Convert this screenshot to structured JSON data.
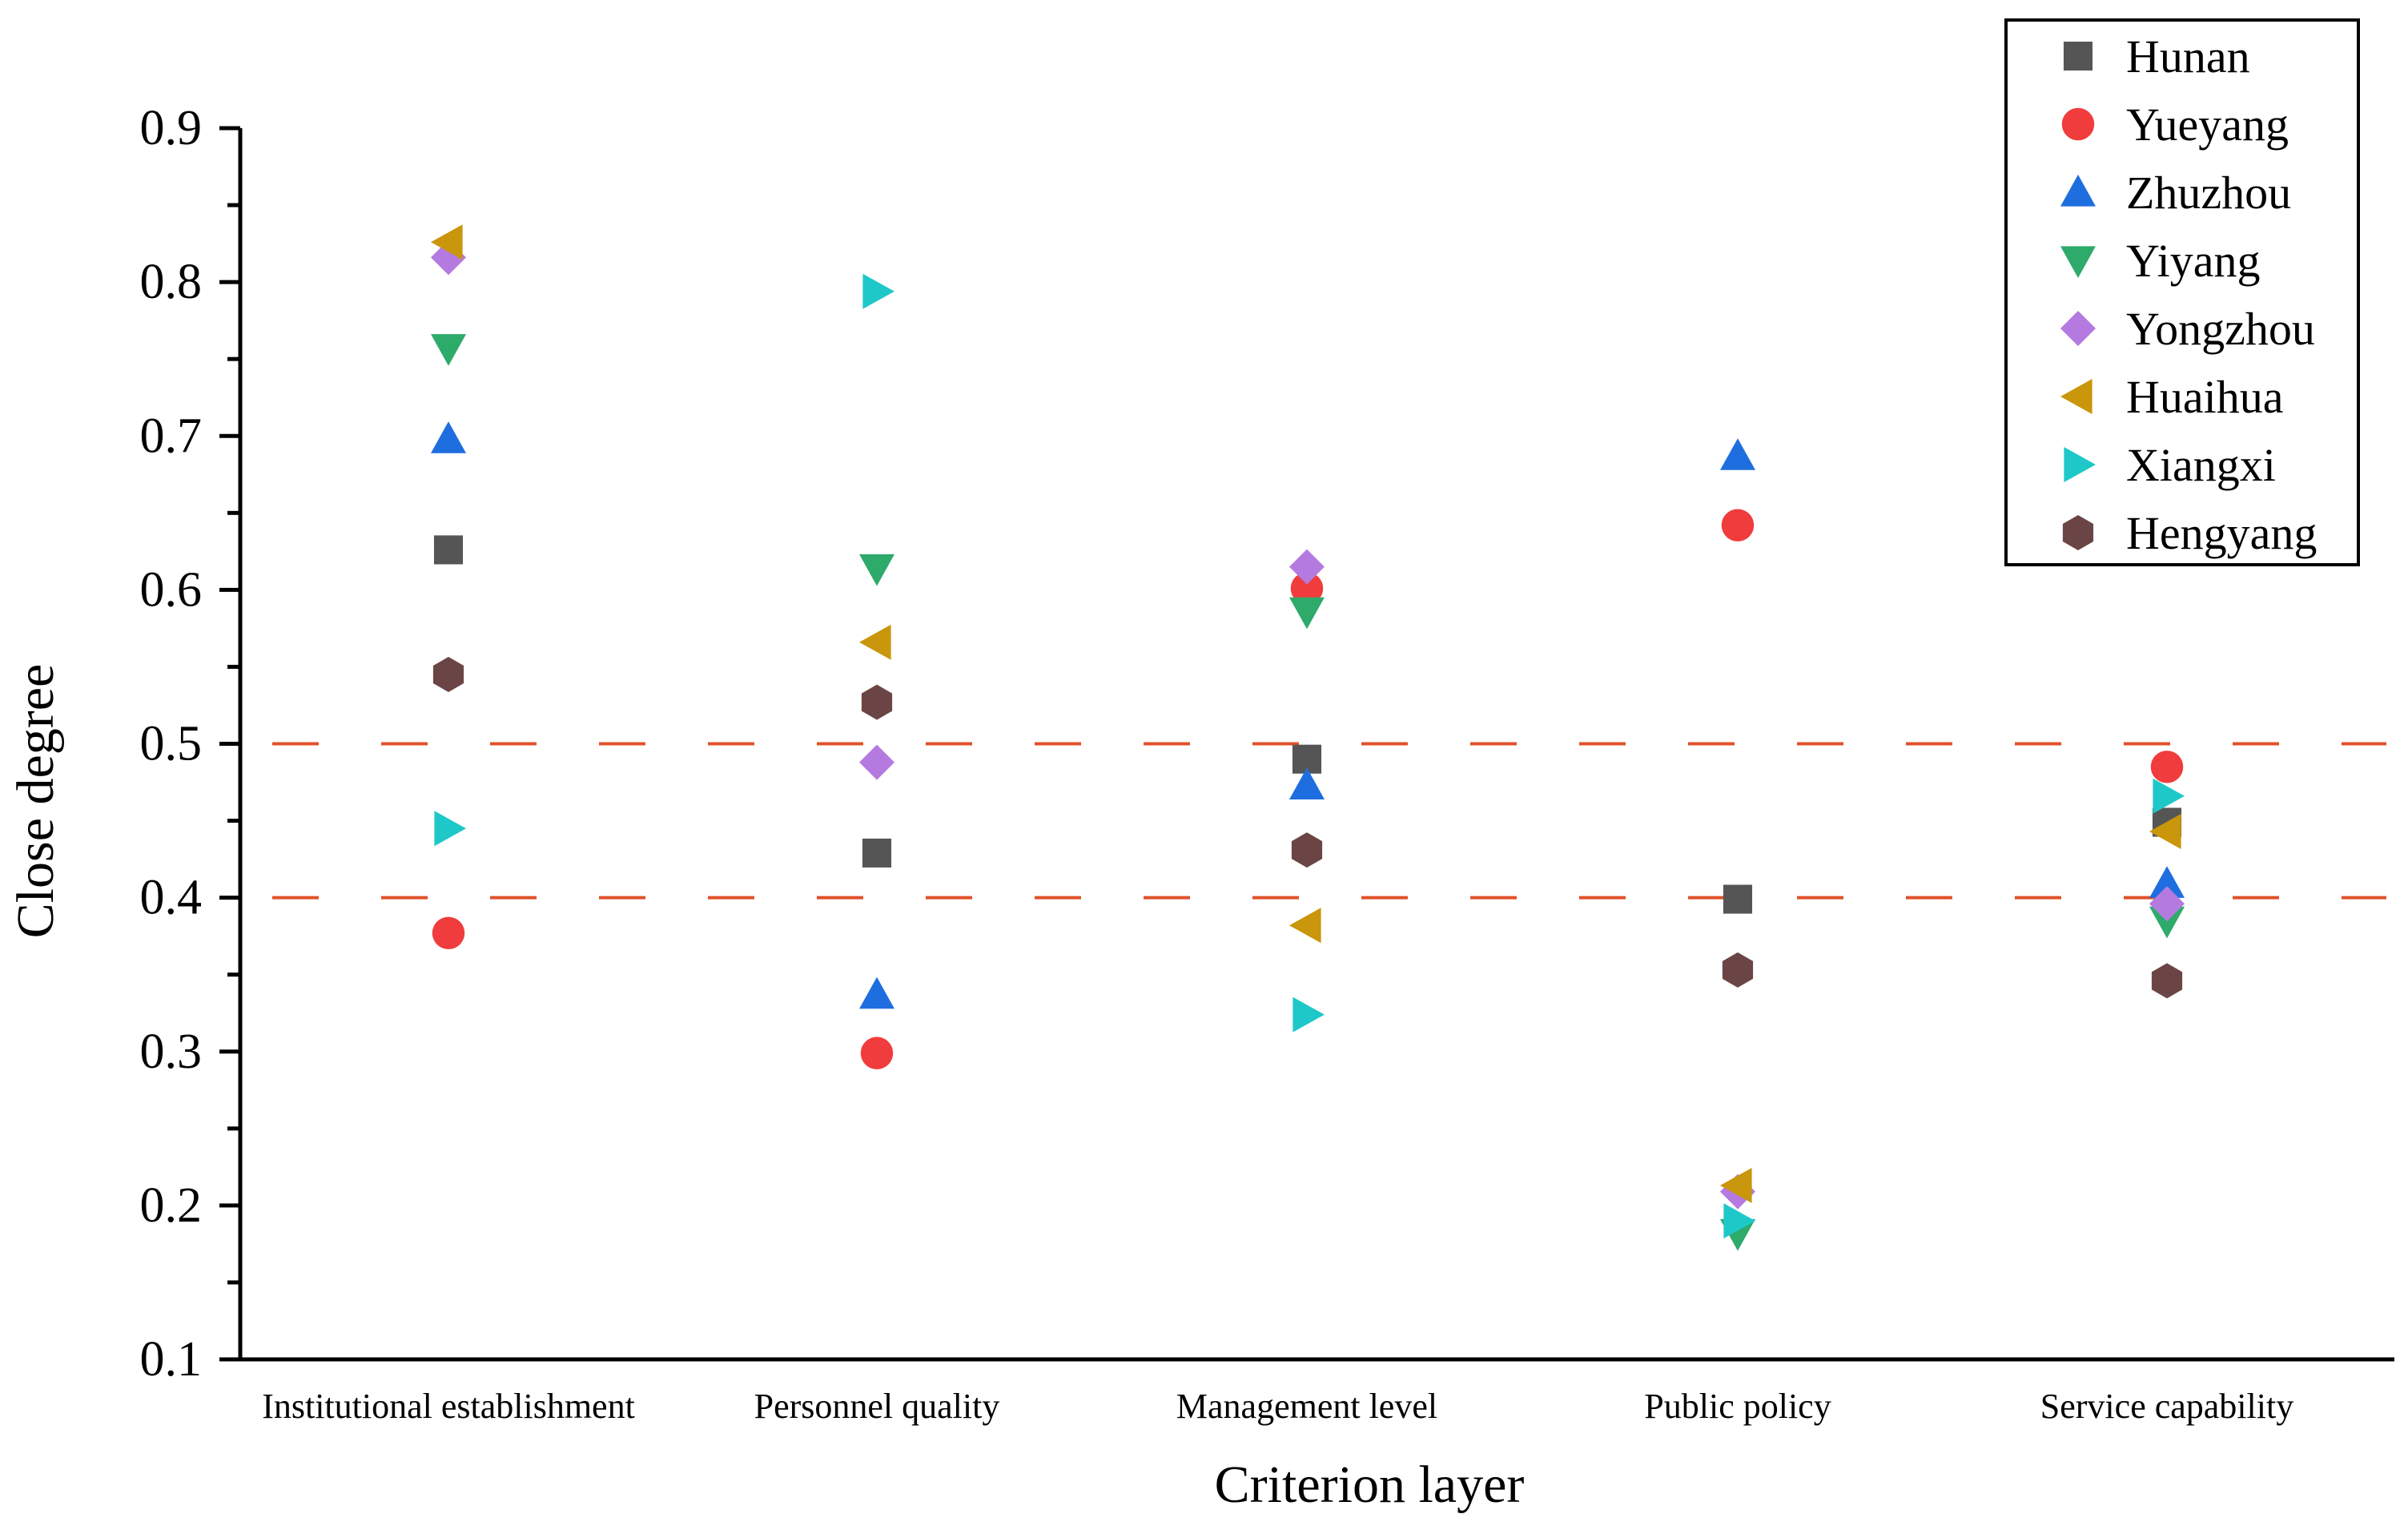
{
  "chart_data": {
    "type": "scatter",
    "title": "",
    "xlabel": "Criterion layer",
    "ylabel": "Close degree",
    "ylim": [
      0.1,
      0.9
    ],
    "yticks": [
      "0.1",
      "0.2",
      "0.3",
      "0.4",
      "0.5",
      "0.6",
      "0.7",
      "0.8",
      "0.9"
    ],
    "categories": [
      "Institutional establishment",
      "Personnel quality",
      "Management level",
      "Public policy",
      "Service capability"
    ],
    "reference_lines": [
      0.5,
      0.4
    ],
    "legend_position": "top-right",
    "series": [
      {
        "name": "Hunan",
        "marker": "square",
        "color": "#555555",
        "values": [
          0.626,
          0.429,
          0.49,
          0.399,
          0.449
        ]
      },
      {
        "name": "Yueyang",
        "marker": "circle",
        "color": "#f03c3c",
        "values": [
          0.377,
          0.299,
          0.601,
          0.642,
          0.485
        ]
      },
      {
        "name": "Zhuzhou",
        "marker": "triangle-up",
        "color": "#1e6ee0",
        "values": [
          0.698,
          0.337,
          0.473,
          0.687,
          0.409
        ]
      },
      {
        "name": "Yiyang",
        "marker": "triangle-down",
        "color": "#2eaa6a",
        "values": [
          0.757,
          0.614,
          0.586,
          0.182,
          0.385
        ]
      },
      {
        "name": "Yongzhou",
        "marker": "diamond",
        "color": "#b57ae0",
        "values": [
          0.816,
          0.488,
          0.615,
          0.209,
          0.396
        ]
      },
      {
        "name": "Huaihua",
        "marker": "triangle-left",
        "color": "#c9960c",
        "values": [
          0.826,
          0.566,
          0.382,
          0.213,
          0.443
        ]
      },
      {
        "name": "Xiangxi",
        "marker": "triangle-right",
        "color": "#1fc8c8",
        "values": [
          0.445,
          0.794,
          0.324,
          0.19,
          0.466
        ]
      },
      {
        "name": "Hengyang",
        "marker": "hexagon",
        "color": "#6b4545",
        "values": [
          0.545,
          0.527,
          0.431,
          0.353,
          0.346
        ]
      }
    ],
    "colors": {
      "axis": "#000000",
      "reference_line": "#e0522a"
    }
  }
}
